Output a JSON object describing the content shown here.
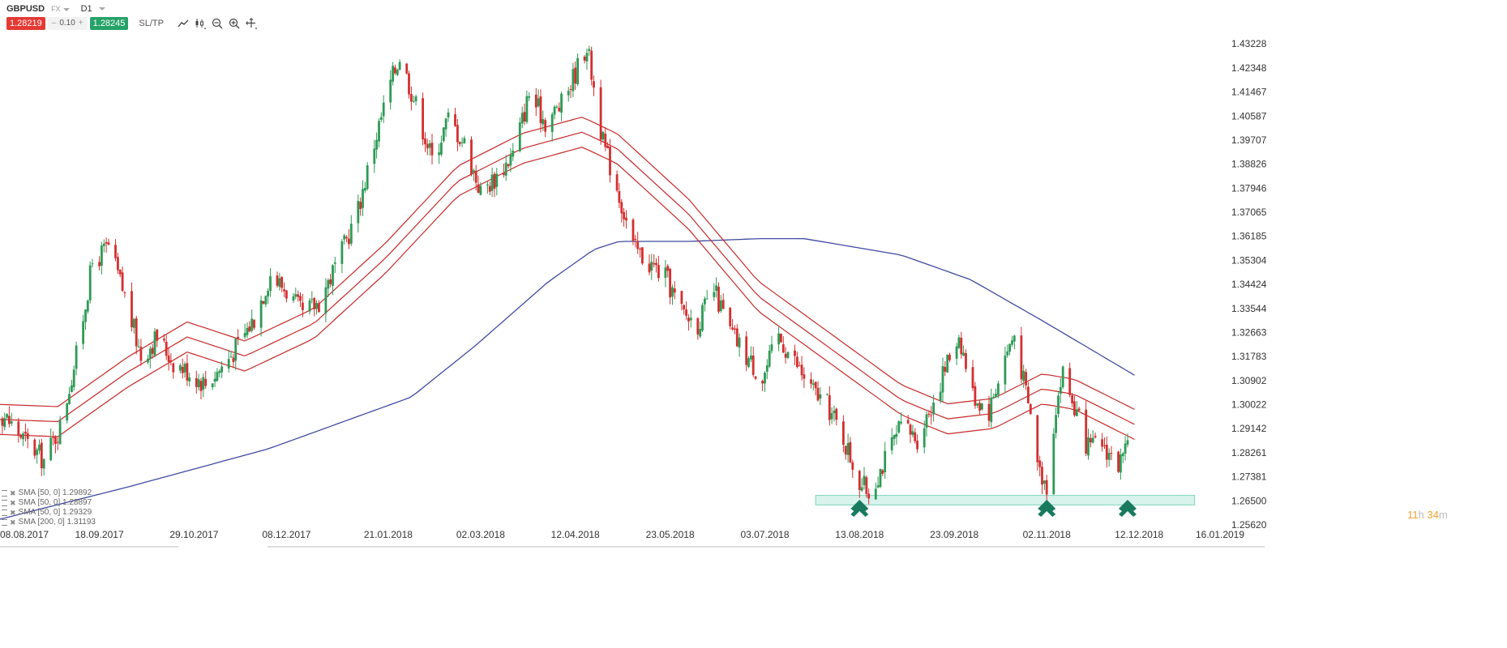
{
  "header": {
    "symbol": "GBPUSD",
    "market": "FX",
    "timeframe": "D1"
  },
  "trade": {
    "sell_price": "1.28219",
    "minus": "–",
    "quantity": "0.10",
    "plus": "+",
    "buy_price": "1.28245",
    "sltp_label": "SL/TP"
  },
  "tools": [
    "line-chart-icon",
    "candles-icon",
    "zoom-out-icon",
    "zoom-in-icon",
    "crosshair-icon"
  ],
  "legend": [
    {
      "text": "SMA [50, 0] 1.29892"
    },
    {
      "text": "SMA [50, 0] 1.28897"
    },
    {
      "text": "SMA [50, 0] 1.29329"
    },
    {
      "text": "SMA [200, 0] 1.31193"
    }
  ],
  "timer": {
    "hours": "11",
    "h": "h",
    "minutes": "34",
    "m": "m"
  },
  "colors": {
    "up": "#2e9a55",
    "down": "#d32f2f",
    "sma50": "#c62828",
    "sma200": "#3f4aa0",
    "zone_fill": "#d8f3ec",
    "zone_stroke": "#7fd4bb",
    "arrow": "#1a7a5e"
  },
  "chart_data": {
    "type": "candlestick",
    "symbol": "GBPUSD",
    "ylim": [
      1.2562,
      1.4368
    ],
    "y_ticks": [
      "1.43228",
      "1.42348",
      "1.41467",
      "1.40587",
      "1.39707",
      "1.38826",
      "1.37946",
      "1.37065",
      "1.36185",
      "1.35304",
      "1.34424",
      "1.33544",
      "1.32663",
      "1.31783",
      "1.30902",
      "1.30022",
      "1.29142",
      "1.28261",
      "1.27381",
      "1.26500",
      "1.25620"
    ],
    "x_ticks": [
      "08.08.2017",
      "18.09.2017",
      "29.10.2017",
      "08.12.2017",
      "21.01.2018",
      "02.03.2018",
      "12.04.2018",
      "23.05.2018",
      "03.07.2018",
      "13.08.2018",
      "23.09.2018",
      "02.11.2018",
      "12.12.2018",
      "16.01.2019"
    ],
    "close_path": [
      [
        "2017-07-31",
        1.3
      ],
      [
        "2017-08-08",
        1.296
      ],
      [
        "2017-08-18",
        1.286
      ],
      [
        "2017-08-25",
        1.28
      ],
      [
        "2017-09-01",
        1.292
      ],
      [
        "2017-09-08",
        1.318
      ],
      [
        "2017-09-15",
        1.352
      ],
      [
        "2017-09-22",
        1.358
      ],
      [
        "2017-09-29",
        1.34
      ],
      [
        "2017-10-06",
        1.318
      ],
      [
        "2017-10-13",
        1.325
      ],
      [
        "2017-10-20",
        1.316
      ],
      [
        "2017-10-27",
        1.312
      ],
      [
        "2017-11-03",
        1.308
      ],
      [
        "2017-11-10",
        1.314
      ],
      [
        "2017-11-17",
        1.322
      ],
      [
        "2017-11-24",
        1.332
      ],
      [
        "2017-12-01",
        1.348
      ],
      [
        "2017-12-08",
        1.342
      ],
      [
        "2017-12-15",
        1.333
      ],
      [
        "2017-12-22",
        1.338
      ],
      [
        "2018-01-01",
        1.356
      ],
      [
        "2018-01-08",
        1.372
      ],
      [
        "2018-01-15",
        1.396
      ],
      [
        "2018-01-22",
        1.418
      ],
      [
        "2018-01-26",
        1.428
      ],
      [
        "2018-02-02",
        1.41
      ],
      [
        "2018-02-09",
        1.39
      ],
      [
        "2018-02-16",
        1.405
      ],
      [
        "2018-02-23",
        1.396
      ],
      [
        "2018-03-02",
        1.378
      ],
      [
        "2018-03-09",
        1.384
      ],
      [
        "2018-03-16",
        1.392
      ],
      [
        "2018-03-23",
        1.414
      ],
      [
        "2018-03-30",
        1.404
      ],
      [
        "2018-04-06",
        1.41
      ],
      [
        "2018-04-13",
        1.424
      ],
      [
        "2018-04-17",
        1.432
      ],
      [
        "2018-04-24",
        1.396
      ],
      [
        "2018-04-30",
        1.38
      ],
      [
        "2018-05-07",
        1.358
      ],
      [
        "2018-05-14",
        1.352
      ],
      [
        "2018-05-21",
        1.347
      ],
      [
        "2018-05-28",
        1.334
      ],
      [
        "2018-06-04",
        1.33
      ],
      [
        "2018-06-11",
        1.342
      ],
      [
        "2018-06-18",
        1.327
      ],
      [
        "2018-06-25",
        1.318
      ],
      [
        "2018-07-02",
        1.31
      ],
      [
        "2018-07-09",
        1.325
      ],
      [
        "2018-07-16",
        1.316
      ],
      [
        "2018-07-23",
        1.306
      ],
      [
        "2018-07-30",
        1.3
      ],
      [
        "2018-08-06",
        1.288
      ],
      [
        "2018-08-13",
        1.272
      ],
      [
        "2018-08-17",
        1.268
      ],
      [
        "2018-08-24",
        1.28
      ],
      [
        "2018-08-31",
        1.292
      ],
      [
        "2018-09-07",
        1.288
      ],
      [
        "2018-09-14",
        1.302
      ],
      [
        "2018-09-21",
        1.318
      ],
      [
        "2018-09-25",
        1.326
      ],
      [
        "2018-10-01",
        1.304
      ],
      [
        "2018-10-08",
        1.298
      ],
      [
        "2018-10-15",
        1.318
      ],
      [
        "2018-10-19",
        1.326
      ],
      [
        "2018-10-26",
        1.296
      ],
      [
        "2018-10-30",
        1.276
      ],
      [
        "2018-11-02",
        1.271
      ],
      [
        "2018-11-06",
        1.3
      ],
      [
        "2018-11-09",
        1.312
      ],
      [
        "2018-11-14",
        1.299
      ],
      [
        "2018-11-20",
        1.284
      ],
      [
        "2018-11-26",
        1.286
      ],
      [
        "2018-12-03",
        1.278
      ],
      [
        "2018-12-07",
        1.283
      ]
    ],
    "sma50_path": [
      [
        "2017-07-31",
        1.295
      ],
      [
        "2017-08-31",
        1.294
      ],
      [
        "2017-09-30",
        1.312
      ],
      [
        "2017-10-26",
        1.325
      ],
      [
        "2017-11-20",
        1.318
      ],
      [
        "2017-12-20",
        1.33
      ],
      [
        "2018-01-20",
        1.354
      ],
      [
        "2018-02-20",
        1.382
      ],
      [
        "2018-03-20",
        1.394
      ],
      [
        "2018-04-15",
        1.4
      ],
      [
        "2018-04-30",
        1.394
      ],
      [
        "2018-05-31",
        1.37
      ],
      [
        "2018-06-30",
        1.34
      ],
      [
        "2018-07-31",
        1.321
      ],
      [
        "2018-08-31",
        1.302
      ],
      [
        "2018-09-20",
        1.295
      ],
      [
        "2018-10-10",
        1.297
      ],
      [
        "2018-10-31",
        1.306
      ],
      [
        "2018-11-14",
        1.304
      ],
      [
        "2018-12-10",
        1.293
      ]
    ],
    "sma50_band_offset": 0.0055,
    "sma200_path": [
      [
        "2017-07-31",
        1.257
      ],
      [
        "2017-09-30",
        1.27
      ],
      [
        "2017-11-30",
        1.284
      ],
      [
        "2018-01-31",
        1.303
      ],
      [
        "2018-02-28",
        1.322
      ],
      [
        "2018-03-31",
        1.345
      ],
      [
        "2018-04-20",
        1.357
      ],
      [
        "2018-05-01",
        1.36
      ],
      [
        "2018-06-01",
        1.36
      ],
      [
        "2018-07-01",
        1.361
      ],
      [
        "2018-07-20",
        1.361
      ],
      [
        "2018-08-31",
        1.355
      ],
      [
        "2018-09-30",
        1.346
      ],
      [
        "2018-10-31",
        1.331
      ],
      [
        "2018-11-30",
        1.316
      ],
      [
        "2018-12-10",
        1.311
      ]
    ],
    "support_zone": {
      "from": "2018-07-25",
      "to": "2019-01-05",
      "low": 1.2635,
      "high": 1.267
    },
    "arrows": [
      "2018-08-13",
      "2018-11-02",
      "2018-12-07"
    ],
    "x_range": [
      "2017-08-06",
      "2019-01-16"
    ]
  }
}
